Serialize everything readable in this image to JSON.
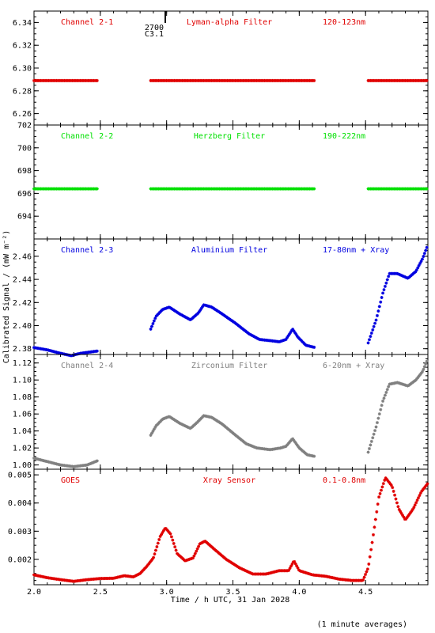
{
  "chart_data": {
    "type": "scatter",
    "xlabel": "Time / h UTC, 31 Jan 2028",
    "ylabel": "Calibrated Signal / (mW m⁻²)",
    "footnote": "(1 minute averages)",
    "xlim": [
      2.0,
      4.97
    ],
    "x_ticks": [
      "2.0",
      "2.5",
      "3.0",
      "3.5",
      "4.0",
      "4.5"
    ],
    "marker": {
      "time": 2.99,
      "label_top": "2700",
      "label_bottom": "C3.1"
    },
    "panels": [
      {
        "channel": "Channel 2-1",
        "filter": "Lyman-alpha Filter",
        "band": "120-123nm",
        "color": "#e00000",
        "ylim": [
          6.25,
          6.35
        ],
        "y_ticks": [
          "6.26",
          "6.28",
          "6.30",
          "6.32",
          "6.34"
        ],
        "segments": [
          {
            "x0": 2.0,
            "x1": 2.48,
            "points": [
              [
                2.0,
                6.289
              ],
              [
                2.48,
                6.289
              ]
            ]
          },
          {
            "x0": 2.88,
            "x1": 4.12,
            "points": [
              [
                2.88,
                6.289
              ],
              [
                4.12,
                6.289
              ]
            ]
          },
          {
            "x0": 4.52,
            "x1": 4.97,
            "points": [
              [
                4.52,
                6.289
              ],
              [
                4.97,
                6.289
              ]
            ]
          }
        ]
      },
      {
        "channel": "Channel 2-2",
        "filter": "Herzberg Filter",
        "band": "190-222nm",
        "color": "#00e000",
        "ylim": [
          692,
          702
        ],
        "y_ticks": [
          "694",
          "696",
          "698",
          "700",
          "702"
        ],
        "segments": [
          {
            "x0": 2.0,
            "x1": 2.48,
            "points": [
              [
                2.0,
                696.4
              ],
              [
                2.48,
                696.4
              ]
            ]
          },
          {
            "x0": 2.88,
            "x1": 4.12,
            "points": [
              [
                2.88,
                696.4
              ],
              [
                4.12,
                696.4
              ]
            ]
          },
          {
            "x0": 4.52,
            "x1": 4.97,
            "points": [
              [
                4.52,
                696.4
              ],
              [
                4.97,
                696.4
              ]
            ]
          }
        ]
      },
      {
        "channel": "Channel 2-3",
        "filter": "Aluminium Filter",
        "band": "17-80nm + Xray",
        "color": "#0000e0",
        "ylim": [
          2.375,
          2.475
        ],
        "y_ticks": [
          "2.38",
          "2.40",
          "2.42",
          "2.44",
          "2.46"
        ],
        "segments": [
          {
            "points": [
              [
                2.0,
                2.381
              ],
              [
                2.1,
                2.379
              ],
              [
                2.2,
                2.376
              ],
              [
                2.28,
                2.374
              ],
              [
                2.35,
                2.376
              ],
              [
                2.48,
                2.378
              ]
            ]
          },
          {
            "points": [
              [
                2.88,
                2.397
              ],
              [
                2.92,
                2.408
              ],
              [
                2.97,
                2.414
              ],
              [
                3.02,
                2.416
              ],
              [
                3.1,
                2.41
              ],
              [
                3.18,
                2.405
              ],
              [
                3.24,
                2.411
              ],
              [
                3.28,
                2.418
              ],
              [
                3.34,
                2.416
              ],
              [
                3.42,
                2.41
              ],
              [
                3.52,
                2.402
              ],
              [
                3.62,
                2.393
              ],
              [
                3.7,
                2.388
              ],
              [
                3.78,
                2.387
              ],
              [
                3.85,
                2.386
              ],
              [
                3.9,
                2.388
              ],
              [
                3.95,
                2.397
              ],
              [
                3.99,
                2.39
              ],
              [
                4.05,
                2.383
              ],
              [
                4.12,
                2.381
              ]
            ]
          },
          {
            "points": [
              [
                4.52,
                2.385
              ],
              [
                4.58,
                2.405
              ],
              [
                4.63,
                2.428
              ],
              [
                4.68,
                2.445
              ],
              [
                4.74,
                2.445
              ],
              [
                4.82,
                2.441
              ],
              [
                4.88,
                2.447
              ],
              [
                4.93,
                2.458
              ],
              [
                4.97,
                2.47
              ]
            ]
          }
        ]
      },
      {
        "channel": "Channel 2-4",
        "filter": "Zirconium Filter",
        "band": "6-20nm + Xray",
        "color": "#808080",
        "ylim": [
          0.995,
          1.13
        ],
        "y_ticks": [
          "1.00",
          "1.02",
          "1.04",
          "1.06",
          "1.08",
          "1.10",
          "1.12"
        ],
        "segments": [
          {
            "points": [
              [
                2.0,
                1.008
              ],
              [
                2.1,
                1.004
              ],
              [
                2.2,
                1.0
              ],
              [
                2.3,
                0.998
              ],
              [
                2.4,
                1.0
              ],
              [
                2.48,
                1.005
              ]
            ]
          },
          {
            "points": [
              [
                2.88,
                1.035
              ],
              [
                2.92,
                1.046
              ],
              [
                2.97,
                1.054
              ],
              [
                3.02,
                1.057
              ],
              [
                3.1,
                1.049
              ],
              [
                3.18,
                1.043
              ],
              [
                3.23,
                1.05
              ],
              [
                3.28,
                1.058
              ],
              [
                3.34,
                1.056
              ],
              [
                3.42,
                1.048
              ],
              [
                3.52,
                1.035
              ],
              [
                3.6,
                1.025
              ],
              [
                3.68,
                1.02
              ],
              [
                3.78,
                1.018
              ],
              [
                3.86,
                1.02
              ],
              [
                3.9,
                1.022
              ],
              [
                3.95,
                1.031
              ],
              [
                4.0,
                1.02
              ],
              [
                4.06,
                1.012
              ],
              [
                4.12,
                1.01
              ]
            ]
          },
          {
            "points": [
              [
                4.52,
                1.015
              ],
              [
                4.58,
                1.045
              ],
              [
                4.63,
                1.075
              ],
              [
                4.68,
                1.095
              ],
              [
                4.74,
                1.097
              ],
              [
                4.82,
                1.093
              ],
              [
                4.88,
                1.1
              ],
              [
                4.93,
                1.11
              ],
              [
                4.97,
                1.125
              ]
            ]
          }
        ]
      },
      {
        "channel": "GOES",
        "filter": "Xray Sensor",
        "band": "0.1-0.8nm",
        "color": "#e00000",
        "ylim": [
          0.0011,
          0.0052
        ],
        "y_ticks": [
          "0.002",
          "0.003",
          "0.004",
          "0.005"
        ],
        "segments": [
          {
            "points": [
              [
                2.0,
                0.00145
              ],
              [
                2.1,
                0.00135
              ],
              [
                2.2,
                0.00128
              ],
              [
                2.3,
                0.00122
              ],
              [
                2.4,
                0.00128
              ],
              [
                2.5,
                0.00132
              ],
              [
                2.6,
                0.00133
              ],
              [
                2.68,
                0.00142
              ],
              [
                2.75,
                0.00138
              ],
              [
                2.8,
                0.0015
              ],
              [
                2.85,
                0.00175
              ],
              [
                2.9,
                0.00205
              ],
              [
                2.95,
                0.0028
              ],
              [
                2.99,
                0.00312
              ],
              [
                3.03,
                0.0029
              ],
              [
                3.08,
                0.0022
              ],
              [
                3.14,
                0.00195
              ],
              [
                3.2,
                0.00205
              ],
              [
                3.25,
                0.00255
              ],
              [
                3.29,
                0.00265
              ],
              [
                3.35,
                0.0024
              ],
              [
                3.45,
                0.002
              ],
              [
                3.55,
                0.0017
              ],
              [
                3.65,
                0.00148
              ],
              [
                3.75,
                0.00148
              ],
              [
                3.85,
                0.0016
              ],
              [
                3.92,
                0.0016
              ],
              [
                3.96,
                0.00195
              ],
              [
                4.0,
                0.0016
              ],
              [
                4.1,
                0.00145
              ],
              [
                4.2,
                0.0014
              ],
              [
                4.3,
                0.0013
              ],
              [
                4.4,
                0.00125
              ],
              [
                4.48,
                0.00125
              ],
              [
                4.52,
                0.0017
              ],
              [
                4.55,
                0.0026
              ],
              [
                4.6,
                0.0042
              ],
              [
                4.65,
                0.0049
              ],
              [
                4.7,
                0.0046
              ],
              [
                4.75,
                0.0038
              ],
              [
                4.8,
                0.0034
              ],
              [
                4.86,
                0.0038
              ],
              [
                4.92,
                0.0044
              ],
              [
                4.97,
                0.0047
              ]
            ]
          }
        ]
      }
    ]
  }
}
